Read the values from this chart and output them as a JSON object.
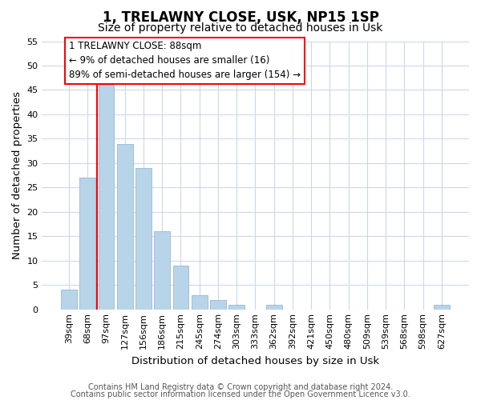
{
  "title": "1, TRELAWNY CLOSE, USK, NP15 1SP",
  "subtitle": "Size of property relative to detached houses in Usk",
  "xlabel": "Distribution of detached houses by size in Usk",
  "ylabel": "Number of detached properties",
  "bar_labels": [
    "39sqm",
    "68sqm",
    "97sqm",
    "127sqm",
    "156sqm",
    "186sqm",
    "215sqm",
    "245sqm",
    "274sqm",
    "303sqm",
    "333sqm",
    "362sqm",
    "392sqm",
    "421sqm",
    "450sqm",
    "480sqm",
    "509sqm",
    "539sqm",
    "568sqm",
    "598sqm",
    "627sqm"
  ],
  "bar_values": [
    4,
    27,
    46,
    34,
    29,
    16,
    9,
    3,
    2,
    1,
    0,
    1,
    0,
    0,
    0,
    0,
    0,
    0,
    0,
    0,
    1
  ],
  "bar_color": "#b8d4e8",
  "bar_edge_color": "#98b8d8",
  "ylim": [
    0,
    55
  ],
  "yticks": [
    0,
    5,
    10,
    15,
    20,
    25,
    30,
    35,
    40,
    45,
    50,
    55
  ],
  "annotation_line1": "1 TRELAWNY CLOSE: 88sqm",
  "annotation_line2": "← 9% of detached houses are smaller (16)",
  "annotation_line3": "89% of semi-detached houses are larger (154) →",
  "footer_line1": "Contains HM Land Registry data © Crown copyright and database right 2024.",
  "footer_line2": "Contains public sector information licensed under the Open Government Licence v3.0.",
  "background_color": "#ffffff",
  "grid_color": "#ccd8e8",
  "title_fontsize": 12,
  "subtitle_fontsize": 10,
  "axis_label_fontsize": 9.5,
  "tick_fontsize": 8,
  "annotation_fontsize": 8.5,
  "footer_fontsize": 7
}
